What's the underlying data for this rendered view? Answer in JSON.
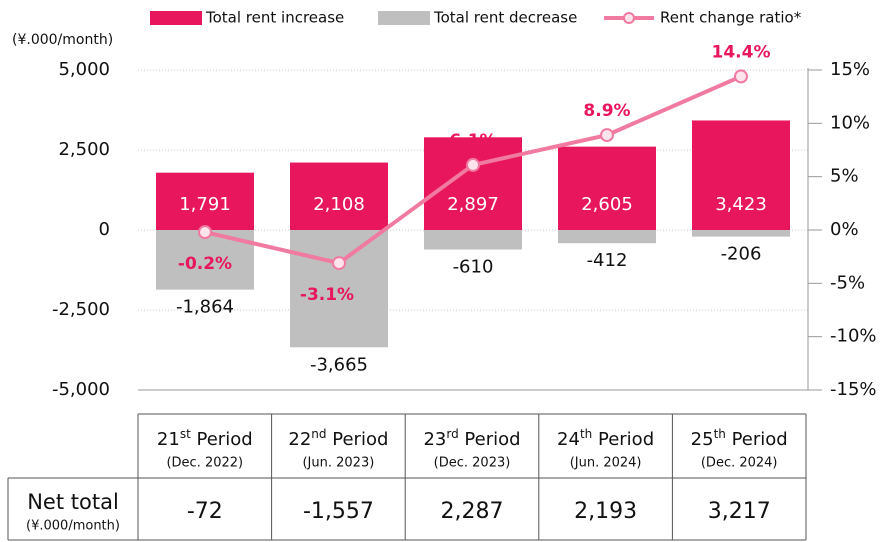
{
  "chart_data": {
    "type": "bar",
    "y_label": "(¥.000/month)",
    "categories": [
      "21st Period",
      "22nd Period",
      "23rd Period",
      "24th Period",
      "25th Period"
    ],
    "category_dates": [
      "(Dec. 2022)",
      "(Jun. 2023)",
      "(Dec. 2023)",
      "(Jun. 2024)",
      "(Dec. 2024)"
    ],
    "series": [
      {
        "name": "Total rent increase",
        "color": "#e8175d",
        "values": [
          1791,
          2108,
          2897,
          2605,
          3423
        ],
        "value_labels": [
          "1,791",
          "2,108",
          "2,897",
          "2,605",
          "3,423"
        ]
      },
      {
        "name": "Total rent decrease",
        "color": "#bfbfbf",
        "values": [
          -1864,
          -3665,
          -610,
          -412,
          -206
        ],
        "value_labels": [
          "-1,864",
          "-3,665",
          "-610",
          "-412",
          "-206"
        ]
      },
      {
        "name": "Rent change ratio*",
        "color": "#f07aa0",
        "type": "line",
        "axis": "y2",
        "values": [
          -0.2,
          -3.1,
          6.1,
          8.9,
          14.4
        ],
        "value_labels": [
          "-0.2%",
          "-3.1%",
          "6.1%",
          "8.9%",
          "14.4%"
        ]
      }
    ],
    "ylim": [
      -5000,
      5000
    ],
    "yticks": [
      {
        "value": 5000,
        "label": "5,000"
      },
      {
        "value": 2500,
        "label": "2,500"
      },
      0,
      {
        "value": -2500,
        "label": "-2,500"
      },
      {
        "value": -5000,
        "label": "-5,000"
      }
    ],
    "y2lim": [
      -15,
      15
    ],
    "y2ticks": [
      {
        "value": 15,
        "label": "15%"
      },
      {
        "value": 10,
        "label": "10%"
      },
      {
        "value": 5,
        "label": "5%"
      },
      {
        "value": 0,
        "label": "0%"
      },
      {
        "value": -5,
        "label": "-5%"
      },
      {
        "value": -10,
        "label": "-10%"
      },
      {
        "value": -15,
        "label": "-15%"
      }
    ],
    "grid": true,
    "legend": "top",
    "net_total": {
      "label": "Net total",
      "unit": "(¥.000/month)",
      "values": [
        "-72",
        "-1,557",
        "2,287",
        "2,193",
        "3,217"
      ]
    }
  }
}
